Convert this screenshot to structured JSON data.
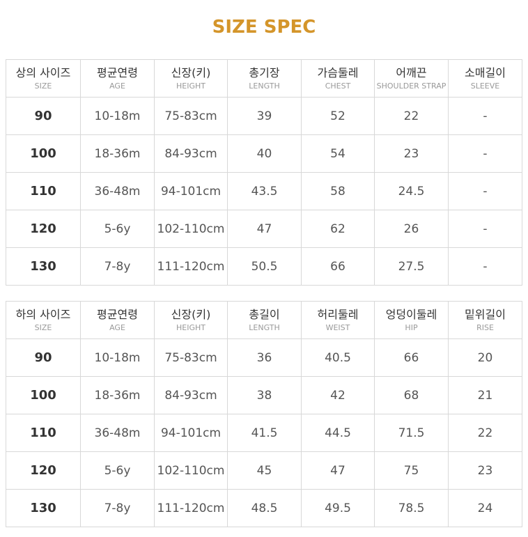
{
  "title": "SIZE SPEC",
  "tables": [
    {
      "headers": [
        {
          "label": "상의 사이즈",
          "sub": "SIZE"
        },
        {
          "label": "평균연령",
          "sub": "AGE"
        },
        {
          "label": "신장(키)",
          "sub": "HEIGHT"
        },
        {
          "label": "총기장",
          "sub": "LENGTH"
        },
        {
          "label": "가슴둘레",
          "sub": "CHEST"
        },
        {
          "label": "어깨끈",
          "sub": "SHOULDER STRAP"
        },
        {
          "label": "소매길이",
          "sub": "SLEEVE"
        }
      ],
      "rows": [
        [
          "90",
          "10-18m",
          "75-83cm",
          "39",
          "52",
          "22",
          "-"
        ],
        [
          "100",
          "18-36m",
          "84-93cm",
          "40",
          "54",
          "23",
          "-"
        ],
        [
          "110",
          "36-48m",
          "94-101cm",
          "43.5",
          "58",
          "24.5",
          "-"
        ],
        [
          "120",
          "5-6y",
          "102-110cm",
          "47",
          "62",
          "26",
          "-"
        ],
        [
          "130",
          "7-8y",
          "111-120cm",
          "50.5",
          "66",
          "27.5",
          "-"
        ]
      ]
    },
    {
      "headers": [
        {
          "label": "하의 사이즈",
          "sub": "SIZE"
        },
        {
          "label": "평균연령",
          "sub": "AGE"
        },
        {
          "label": "신장(키)",
          "sub": "HEIGHT"
        },
        {
          "label": "총길이",
          "sub": "LENGTH"
        },
        {
          "label": "허리둘레",
          "sub": "WEIST"
        },
        {
          "label": "엉덩이둘레",
          "sub": "HIP"
        },
        {
          "label": "밑위길이",
          "sub": "RISE"
        }
      ],
      "rows": [
        [
          "90",
          "10-18m",
          "75-83cm",
          "36",
          "40.5",
          "66",
          "20"
        ],
        [
          "100",
          "18-36m",
          "84-93cm",
          "38",
          "42",
          "68",
          "21"
        ],
        [
          "110",
          "36-48m",
          "94-101cm",
          "41.5",
          "44.5",
          "71.5",
          "22"
        ],
        [
          "120",
          "5-6y",
          "102-110cm",
          "45",
          "47",
          "75",
          "23"
        ],
        [
          "130",
          "7-8y",
          "111-120cm",
          "48.5",
          "49.5",
          "78.5",
          "24"
        ]
      ]
    }
  ]
}
